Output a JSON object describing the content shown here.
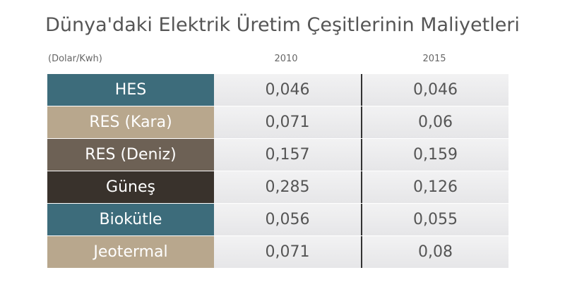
{
  "title": "Dünya'daki Elektrik Üretim Çeşitlerinin Maliyetleri",
  "table": {
    "unit": "(Dolar/Kwh)",
    "columns": [
      "2010",
      "2015"
    ],
    "rows": [
      [
        "HES",
        "0,046",
        "0,046"
      ],
      [
        "RES (Kara)",
        "0,071",
        "0,06"
      ],
      [
        "RES (Deniz)",
        "0,157",
        "0,159"
      ],
      [
        "Güneş",
        "0,285",
        "0,126"
      ],
      [
        "Biokütle",
        "0,056",
        "0,055"
      ],
      [
        "Jeotermal",
        "0,071",
        "0,08"
      ]
    ]
  }
}
